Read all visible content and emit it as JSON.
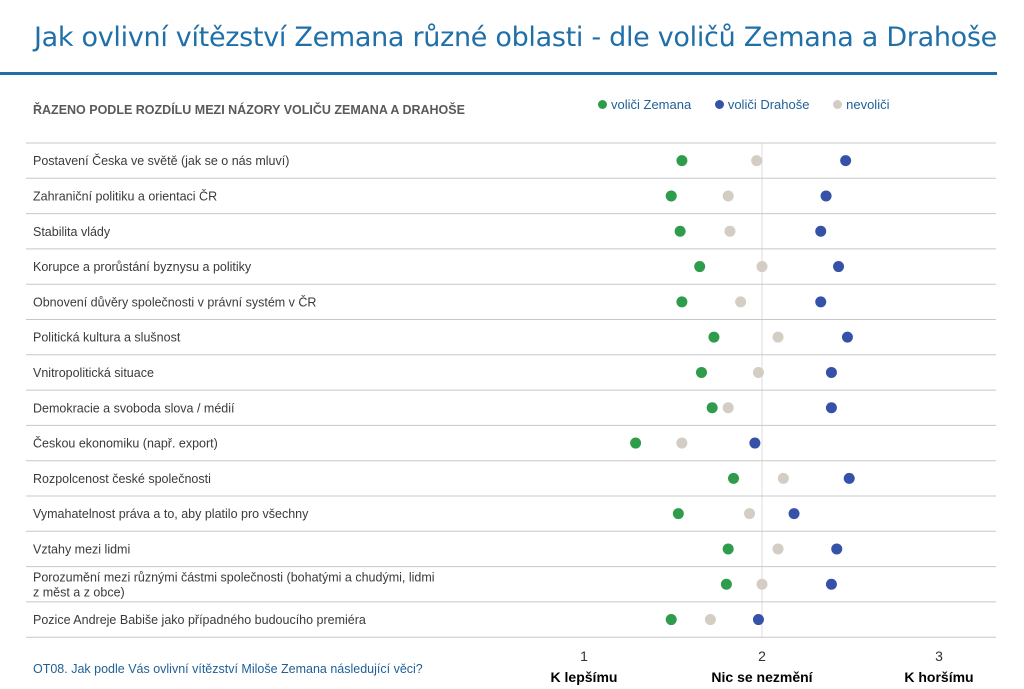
{
  "title": "Jak ovlivní vítězství Zemana různé oblasti - dle voličů Zemana a Drahoše",
  "subtitle": "ŘAZENO PODLE ROZDÍLU MEZI NÁZORY VOLIČU ZEMANA A DRAHOŠE",
  "footnote": "OT08. Jak podle Vás ovlivní vítězství Miloše Zemana následující věci?",
  "colors": {
    "title": "#1f6fa8",
    "zeman": "#2e9c4a",
    "drahos": "#3552a8",
    "nevolici": "#d3cdc3",
    "grid": "#c8c8c8"
  },
  "chart_data": {
    "type": "scatter",
    "title": "Jak ovlivní vítězství Zemana různé oblasti - dle voličů Zemana a Drahoše",
    "xlim": [
      1,
      3
    ],
    "x_ticks": [
      {
        "value": 1,
        "label": "1",
        "name": "K lepšímu"
      },
      {
        "value": 2,
        "label": "2",
        "name": "Nic se nezmění"
      },
      {
        "value": 3,
        "label": "3",
        "name": "K horšímu"
      }
    ],
    "legend_position": "top-right",
    "grid": true,
    "categories": [
      "Postavení Česka ve světě (jak se o nás mluví)",
      "Zahraniční politiku a orientaci ČR",
      "Stabilita vlády",
      "Korupce a prorůstání byznysu a politiky",
      "Obnovení důvěry společnosti v právní systém v ČR",
      "Politická kultura a slušnost",
      "Vnitropolitická situace",
      "Demokracie a svoboda slova / médií",
      "Českou ekonomiku (např. export)",
      "Rozpolcenost české společnosti",
      "Vymahatelnost práva a to, aby platilo pro všechny",
      "Vztahy mezi lidmi",
      "Porozumění mezi různými částmi společnosti (bohatými a chudými, lidmi z měst a z obce)",
      "Pozice Andreje Babiše jako případného budoucího premiéra"
    ],
    "series": [
      {
        "name": "voliči Zemana",
        "color": "#2e9c4a",
        "values": [
          1.55,
          1.49,
          1.54,
          1.65,
          1.55,
          1.73,
          1.66,
          1.72,
          1.29,
          1.84,
          1.53,
          1.81,
          1.8,
          1.49
        ]
      },
      {
        "name": "voliči Drahoše",
        "color": "#3552a8",
        "values": [
          2.47,
          2.36,
          2.33,
          2.43,
          2.33,
          2.48,
          2.39,
          2.39,
          1.96,
          2.49,
          2.18,
          2.42,
          2.39,
          1.98
        ]
      },
      {
        "name": "nevoliči",
        "color": "#d3cdc3",
        "values": [
          1.97,
          1.81,
          1.82,
          2.0,
          1.88,
          2.09,
          1.98,
          1.81,
          1.55,
          2.12,
          1.93,
          2.09,
          2.0,
          1.71
        ]
      }
    ]
  }
}
